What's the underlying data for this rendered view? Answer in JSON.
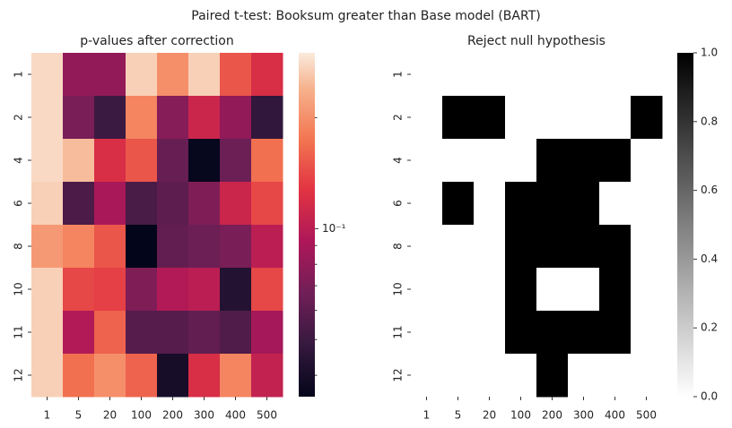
{
  "title": "Paired t-test: Booksum greater than Base model (BART)",
  "chart_data": [
    {
      "type": "heatmap",
      "title": "p-values after correction",
      "x": [
        "1",
        "5",
        "20",
        "100",
        "200",
        "300",
        "400",
        "500"
      ],
      "y": [
        "1",
        "2",
        "4",
        "6",
        "8",
        "10",
        "11",
        "12"
      ],
      "values": [
        [
          0.28,
          0.08,
          0.08,
          0.27,
          0.2,
          0.27,
          0.15,
          0.12
        ],
        [
          0.28,
          0.07,
          0.05,
          0.19,
          0.075,
          0.11,
          0.08,
          0.047
        ],
        [
          0.28,
          0.25,
          0.12,
          0.15,
          0.063,
          0.036,
          0.065,
          0.17
        ],
        [
          0.27,
          0.055,
          0.09,
          0.054,
          0.06,
          0.072,
          0.11,
          0.14
        ],
        [
          0.21,
          0.19,
          0.15,
          0.035,
          0.062,
          0.065,
          0.07,
          0.1
        ],
        [
          0.27,
          0.14,
          0.135,
          0.072,
          0.095,
          0.1,
          0.043,
          0.14
        ],
        [
          0.27,
          0.095,
          0.16,
          0.058,
          0.058,
          0.062,
          0.056,
          0.088
        ],
        [
          0.27,
          0.17,
          0.2,
          0.16,
          0.04,
          0.12,
          0.19,
          0.105
        ]
      ],
      "colormap": "rocket",
      "log_scale": true,
      "clim": [
        0.035,
        0.3
      ],
      "cticks": [
        {
          "value": 0.1,
          "label": "10⁻¹"
        }
      ],
      "minor_cticks": [
        0.04,
        0.05,
        0.06,
        0.07,
        0.08,
        0.09,
        0.2
      ]
    },
    {
      "type": "heatmap",
      "title": "Reject null hypothesis",
      "x": [
        "1",
        "5",
        "20",
        "100",
        "200",
        "300",
        "400",
        "500"
      ],
      "y": [
        "1",
        "2",
        "4",
        "6",
        "8",
        "10",
        "11",
        "12"
      ],
      "values": [
        [
          0,
          0,
          0,
          0,
          0,
          0,
          0,
          0
        ],
        [
          0,
          1,
          1,
          0,
          0,
          0,
          0,
          1
        ],
        [
          0,
          0,
          0,
          0,
          1,
          1,
          1,
          0
        ],
        [
          0,
          1,
          0,
          1,
          1,
          1,
          0,
          0
        ],
        [
          0,
          0,
          0,
          1,
          1,
          1,
          1,
          0
        ],
        [
          0,
          0,
          0,
          1,
          0,
          0,
          1,
          0
        ],
        [
          0,
          0,
          0,
          1,
          1,
          1,
          1,
          0
        ],
        [
          0,
          0,
          0,
          0,
          1,
          0,
          0,
          0
        ]
      ],
      "colormap": "gray_r",
      "log_scale": false,
      "clim": [
        0,
        1
      ],
      "cticks": [
        {
          "value": 0,
          "label": "0.0"
        },
        {
          "value": 0.2,
          "label": "0.2"
        },
        {
          "value": 0.4,
          "label": "0.4"
        },
        {
          "value": 0.6,
          "label": "0.6"
        },
        {
          "value": 0.8,
          "label": "0.8"
        },
        {
          "value": 1,
          "label": "1.0"
        }
      ]
    }
  ]
}
